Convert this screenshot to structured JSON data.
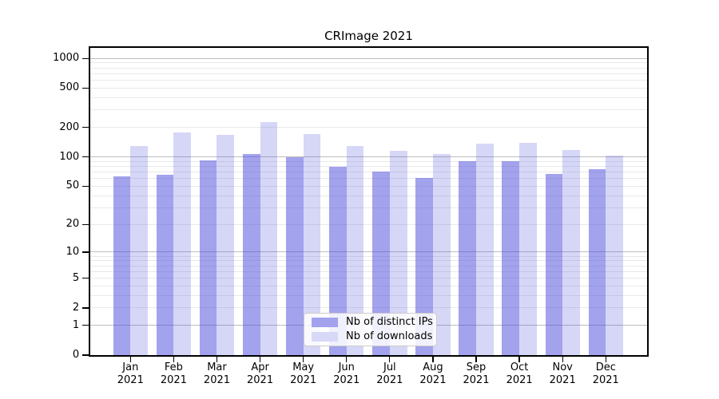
{
  "title": "CRImage 2021",
  "chart_data": {
    "type": "bar",
    "title": "CRImage 2021",
    "categories": [
      "Jan 2021",
      "Feb 2021",
      "Mar 2021",
      "Apr 2021",
      "May 2021",
      "Jun 2021",
      "Jul 2021",
      "Aug 2021",
      "Sep 2021",
      "Oct 2021",
      "Nov 2021",
      "Dec 2021"
    ],
    "x_tick_line1": [
      "Jan",
      "Feb",
      "Mar",
      "Apr",
      "May",
      "Jun",
      "Jul",
      "Aug",
      "Sep",
      "Oct",
      "Nov",
      "Dec"
    ],
    "x_tick_line2": "2021",
    "series": [
      {
        "name": "Nb of distinct IPs",
        "color": "rgba(70,70,220,0.5)",
        "color_on_white": "#a2a2ee",
        "values": [
          63,
          66,
          92,
          108,
          99,
          79,
          71,
          61,
          91,
          91,
          67,
          75
        ]
      },
      {
        "name": "Nb of downloads",
        "color": "rgba(70,70,220,0.22)",
        "color_on_white": "#d8d8f8",
        "values": [
          130,
          178,
          167,
          228,
          170,
          128,
          115,
          108,
          137,
          138,
          118,
          104
        ]
      }
    ],
    "yscale": "log1p (y position proportional to log10(1+value))",
    "y_ticks": [
      0,
      1,
      2,
      5,
      10,
      20,
      50,
      100,
      200,
      500,
      1000
    ],
    "y_minor_gridlines": [
      2,
      3,
      4,
      5,
      6,
      7,
      8,
      9,
      20,
      30,
      40,
      50,
      60,
      70,
      80,
      90,
      200,
      300,
      400,
      500,
      600,
      700,
      800,
      900
    ],
    "y_major_gridlines": [
      1,
      10,
      100,
      1000
    ],
    "ylim": [
      0,
      1280
    ],
    "grid": true,
    "legend_position": "lower center (inside axes)",
    "colors": {
      "bar_dark_on_white": "#a2a2ee",
      "bar_light_on_white": "#d8d8f8",
      "grid_minor": "#e9e9e9",
      "grid_major": "#bdbdbd",
      "spine": "#000000",
      "legend_border": "#cccccc"
    }
  },
  "legend": {
    "items": [
      {
        "label": "Nb of distinct IPs"
      },
      {
        "label": "Nb of downloads"
      }
    ]
  }
}
